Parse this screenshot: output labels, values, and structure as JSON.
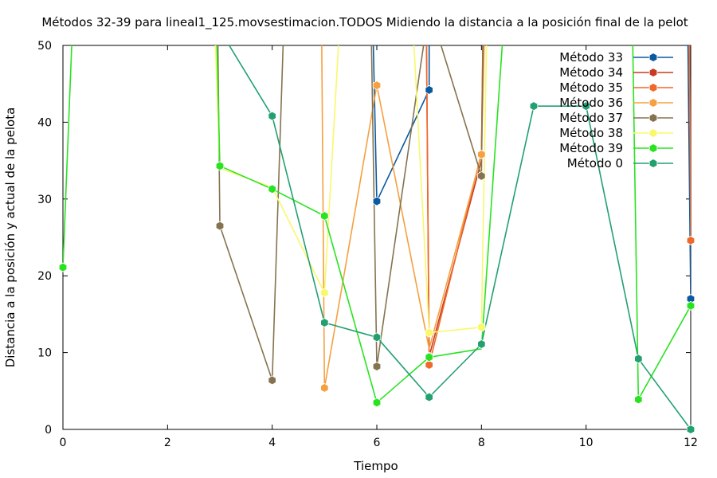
{
  "chart_data": {
    "type": "line",
    "title": "Métodos 32-39 para lineal1_125.movsestimacion.TODOS Midiendo la distancia a la posición final de la pelot",
    "xlabel": "Tiempo",
    "ylabel": "Distancia a la posición y actual de la pelota",
    "xlim": [
      0,
      12
    ],
    "ylim": [
      0,
      50
    ],
    "xticks": [
      0,
      2,
      4,
      6,
      8,
      10,
      12
    ],
    "yticks": [
      0,
      10,
      20,
      30,
      40,
      50
    ],
    "grid": false,
    "legend_position": "top-right",
    "series": [
      {
        "name": "Método 33",
        "color": "#0a5aa0",
        "points": [
          [
            5.8,
            90
          ],
          [
            6,
            29.7
          ],
          [
            7,
            44.2
          ],
          [
            7,
            70
          ],
          [
            11.9,
            80
          ],
          [
            12,
            17.0
          ]
        ]
      },
      {
        "name": "Método 34",
        "color": "#c63c22",
        "points": [
          [
            6.9,
            90
          ],
          [
            7,
            9.5
          ],
          [
            8,
            35.0
          ],
          [
            8.1,
            90
          ],
          [
            11.95,
            80
          ],
          [
            12,
            24.5
          ]
        ]
      },
      {
        "name": "Método 35",
        "color": "#f0692a",
        "points": [
          [
            6.9,
            90
          ],
          [
            7,
            8.4
          ],
          [
            8,
            36.0
          ],
          [
            8.1,
            90
          ],
          [
            11.95,
            80
          ],
          [
            12,
            24.6
          ]
        ]
      },
      {
        "name": "Método 36",
        "color": "#f6a040",
        "points": [
          [
            4.9,
            90
          ],
          [
            5,
            5.4
          ],
          [
            6,
            44.8
          ],
          [
            7,
            10.5
          ],
          [
            8,
            35.8
          ],
          [
            8.2,
            90
          ]
        ]
      },
      {
        "name": "Método 37",
        "color": "#85734f",
        "points": [
          [
            2.9,
            90
          ],
          [
            3,
            26.5
          ],
          [
            4,
            6.4
          ],
          [
            4.4,
            90
          ],
          [
            5.8,
            90
          ],
          [
            6,
            8.2
          ],
          [
            7,
            55
          ],
          [
            8,
            33.0
          ],
          [
            8.1,
            90
          ]
        ]
      },
      {
        "name": "Método 38",
        "color": "#f8f86a",
        "points": [
          [
            2.7,
            90
          ],
          [
            3,
            34.0
          ],
          [
            4,
            31.5
          ],
          [
            5,
            17.8
          ],
          [
            5.6,
            90
          ],
          [
            6.4,
            90
          ],
          [
            7,
            12.6
          ],
          [
            8,
            13.3
          ],
          [
            8.2,
            90
          ]
        ]
      },
      {
        "name": "Método 39",
        "color": "#29e321",
        "points": [
          [
            0,
            21.1
          ],
          [
            0.4,
            90
          ],
          [
            2.8,
            90
          ],
          [
            3,
            34.3
          ],
          [
            4,
            31.3
          ],
          [
            5,
            27.8
          ],
          [
            6,
            3.5
          ],
          [
            7,
            9.4
          ],
          [
            8,
            10.5
          ],
          [
            8.8,
            90
          ],
          [
            10.8,
            90
          ],
          [
            11,
            3.9
          ],
          [
            12,
            16.1
          ]
        ]
      },
      {
        "name": "Método 0",
        "color": "#22a070",
        "points": [
          [
            3,
            52
          ],
          [
            4,
            40.8
          ],
          [
            5,
            13.9
          ],
          [
            6,
            12.0
          ],
          [
            7,
            4.2
          ],
          [
            8,
            11.1
          ],
          [
            9,
            42.1
          ],
          [
            10,
            42.1
          ],
          [
            11,
            9.2
          ],
          [
            12,
            0
          ]
        ]
      }
    ],
    "markers": [
      {
        "series": 0,
        "x": 6,
        "y": 29.7
      },
      {
        "series": 0,
        "x": 7,
        "y": 44.2
      },
      {
        "series": 0,
        "x": 12,
        "y": 17.0
      },
      {
        "series": 1,
        "x": 7,
        "y": 9.5
      },
      {
        "series": 2,
        "x": 7,
        "y": 8.4
      },
      {
        "series": 2,
        "x": 12,
        "y": 24.6
      },
      {
        "series": 3,
        "x": 5,
        "y": 5.4
      },
      {
        "series": 3,
        "x": 6,
        "y": 44.8
      },
      {
        "series": 3,
        "x": 8,
        "y": 35.8
      },
      {
        "series": 4,
        "x": 3,
        "y": 26.5
      },
      {
        "series": 4,
        "x": 4,
        "y": 6.4
      },
      {
        "series": 4,
        "x": 6,
        "y": 8.2
      },
      {
        "series": 4,
        "x": 8,
        "y": 33.0
      },
      {
        "series": 5,
        "x": 5,
        "y": 17.8
      },
      {
        "series": 5,
        "x": 7,
        "y": 12.6
      },
      {
        "series": 5,
        "x": 8,
        "y": 13.3
      },
      {
        "series": 6,
        "x": 0,
        "y": 21.1
      },
      {
        "series": 6,
        "x": 3,
        "y": 34.3
      },
      {
        "series": 6,
        "x": 4,
        "y": 31.3
      },
      {
        "series": 6,
        "x": 5,
        "y": 27.8
      },
      {
        "series": 6,
        "x": 6,
        "y": 3.5
      },
      {
        "series": 6,
        "x": 7,
        "y": 9.4
      },
      {
        "series": 6,
        "x": 11,
        "y": 3.9
      },
      {
        "series": 6,
        "x": 12,
        "y": 16.1
      },
      {
        "series": 7,
        "x": 4,
        "y": 40.8
      },
      {
        "series": 7,
        "x": 5,
        "y": 13.9
      },
      {
        "series": 7,
        "x": 6,
        "y": 12.0
      },
      {
        "series": 7,
        "x": 7,
        "y": 4.2
      },
      {
        "series": 7,
        "x": 8,
        "y": 11.1
      },
      {
        "series": 7,
        "x": 9,
        "y": 42.1
      },
      {
        "series": 7,
        "x": 10,
        "y": 42.1
      },
      {
        "series": 7,
        "x": 11,
        "y": 9.2
      },
      {
        "series": 7,
        "x": 12,
        "y": 0
      }
    ]
  }
}
